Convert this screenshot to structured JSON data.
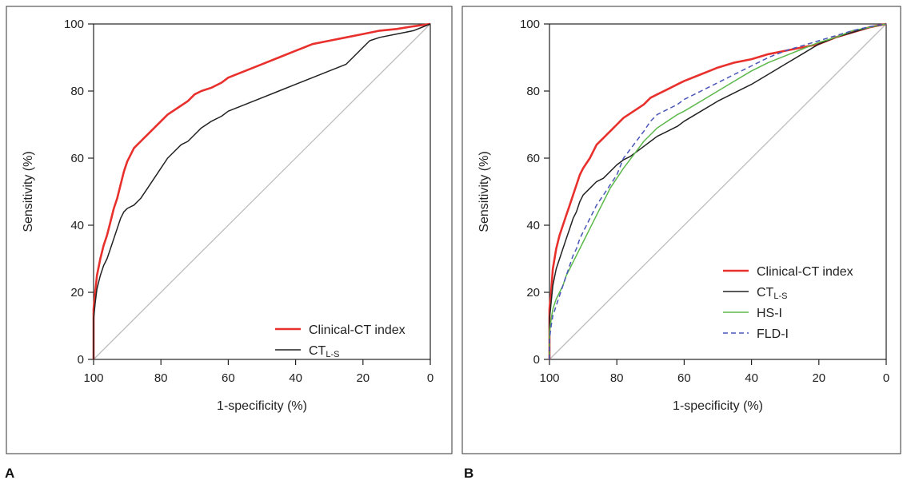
{
  "chart_data": [
    {
      "type": "line",
      "panel": "A",
      "xlabel": "1-specificity (%)",
      "ylabel": "Sensitivity (%)",
      "xlim": [
        100,
        0
      ],
      "ylim": [
        0,
        100
      ],
      "xticks": [
        100,
        80,
        60,
        40,
        20,
        0
      ],
      "yticks": [
        0,
        20,
        40,
        60,
        80,
        100
      ],
      "legend_position": "bottom-right",
      "reference_line": "diagonal",
      "series": [
        {
          "name": "Clinical-CT index",
          "color": "#e8302c",
          "style": "solid",
          "x": [
            100,
            100,
            99.5,
            99,
            98,
            97,
            96,
            95,
            94,
            93,
            92,
            91,
            90,
            88,
            86,
            84,
            82,
            80,
            78,
            75,
            72,
            70,
            68,
            65,
            62,
            60,
            55,
            50,
            45,
            40,
            35,
            30,
            25,
            20,
            15,
            10,
            5,
            0
          ],
          "y": [
            0,
            15,
            20,
            25,
            30,
            34,
            37,
            41,
            45,
            48,
            52,
            56,
            59,
            63,
            65,
            67,
            69,
            71,
            73,
            75,
            77,
            79,
            80,
            81,
            82.5,
            84,
            86,
            88,
            90,
            92,
            94,
            95,
            96,
            97,
            98,
            98.5,
            99.3,
            100
          ]
        },
        {
          "name": "CTL-S",
          "name_main": "CT",
          "name_sub": "L-S",
          "color": "#222222",
          "style": "solid",
          "x": [
            100,
            100,
            99.5,
            99,
            98,
            97,
            96,
            95,
            94,
            93,
            92,
            91,
            90,
            88,
            86,
            84,
            82,
            80,
            78,
            76,
            74,
            72,
            70,
            68,
            65,
            62,
            60,
            55,
            50,
            45,
            40,
            35,
            30,
            25,
            20,
            18,
            15,
            10,
            5,
            0
          ],
          "y": [
            0,
            12,
            17,
            21,
            25,
            28,
            30,
            33,
            36,
            39,
            42,
            44,
            45,
            46,
            48,
            51,
            54,
            57,
            60,
            62,
            64,
            65,
            67,
            69,
            71,
            72.5,
            74,
            76,
            78,
            80,
            82,
            84,
            86,
            88,
            93,
            95,
            96,
            97,
            98,
            100
          ]
        }
      ]
    },
    {
      "type": "line",
      "panel": "B",
      "xlabel": "1-specificity (%)",
      "ylabel": "Sensitivity (%)",
      "xlim": [
        100,
        0
      ],
      "ylim": [
        0,
        100
      ],
      "xticks": [
        100,
        80,
        60,
        40,
        20,
        0
      ],
      "yticks": [
        0,
        20,
        40,
        60,
        80,
        100
      ],
      "legend_position": "bottom-right",
      "reference_line": "diagonal",
      "series": [
        {
          "name": "Clinical-CT index",
          "color": "#e8302c",
          "style": "solid",
          "x": [
            100,
            100,
            99.5,
            99,
            98,
            97,
            96,
            95,
            94,
            93,
            92,
            91,
            90,
            88,
            86,
            84,
            82,
            80,
            78,
            75,
            72,
            70,
            68,
            65,
            62,
            60,
            55,
            50,
            45,
            40,
            35,
            30,
            25,
            20,
            15,
            10,
            5,
            0
          ],
          "y": [
            0,
            15,
            20,
            27,
            33,
            37,
            40,
            43,
            46,
            49,
            52,
            55,
            57,
            60,
            64,
            66,
            68,
            70,
            72,
            74,
            76,
            78,
            79,
            80.5,
            82,
            83,
            85,
            87,
            88.5,
            89.5,
            91,
            92,
            93,
            94,
            96,
            97.5,
            99,
            100
          ]
        },
        {
          "name": "CTL-S",
          "name_main": "CT",
          "name_sub": "L-S",
          "color": "#222222",
          "style": "solid",
          "x": [
            100,
            100,
            99.5,
            99,
            98,
            97,
            96,
            95,
            94,
            93,
            92,
            91,
            90,
            88,
            86,
            84,
            82,
            80,
            78,
            76,
            74,
            72,
            70,
            68,
            65,
            62,
            60,
            55,
            50,
            45,
            40,
            35,
            30,
            25,
            20,
            15,
            10,
            5,
            0
          ],
          "y": [
            0,
            12,
            17,
            22,
            27,
            30,
            33,
            36,
            39,
            42,
            44,
            47,
            49,
            51,
            53,
            54,
            56,
            58,
            59.5,
            60.5,
            62,
            63.5,
            65,
            66.5,
            68,
            69.5,
            71,
            74,
            77,
            79.5,
            82,
            85,
            88,
            91,
            94,
            96,
            97.5,
            99,
            100
          ]
        },
        {
          "name": "HS-I",
          "color": "#5cb84a",
          "style": "solid",
          "x": [
            100,
            100,
            99.5,
            99,
            98,
            97,
            96,
            95,
            94,
            93,
            92,
            91,
            90,
            88,
            86,
            84,
            82,
            80,
            78,
            75,
            72,
            70,
            68,
            65,
            62,
            60,
            55,
            50,
            45,
            40,
            35,
            30,
            25,
            20,
            15,
            10,
            5,
            0
          ],
          "y": [
            0,
            8,
            12,
            15,
            18,
            20,
            22,
            25,
            27,
            29,
            31,
            33,
            35,
            39,
            43,
            47,
            51,
            54,
            57,
            61,
            65,
            67,
            69,
            71,
            73,
            74,
            77,
            80,
            83,
            86,
            88.5,
            90.5,
            92.5,
            94.5,
            96,
            98,
            99,
            100
          ]
        },
        {
          "name": "FLD-I",
          "color": "#4a56b8",
          "style": "dashed",
          "x": [
            100,
            100,
            99.5,
            99,
            98,
            97,
            96,
            95,
            94,
            93,
            92,
            91,
            90,
            88,
            86,
            84,
            82,
            80,
            78,
            75,
            72,
            70,
            68,
            65,
            62,
            60,
            55,
            50,
            45,
            40,
            35,
            30,
            25,
            20,
            15,
            10,
            5,
            0
          ],
          "y": [
            0,
            6,
            10,
            13,
            16,
            19,
            22,
            25,
            28,
            31,
            33,
            36,
            38,
            42,
            46,
            49,
            52,
            55,
            60,
            64,
            68,
            71,
            73,
            74.5,
            76,
            77.5,
            80,
            82.5,
            85,
            87.5,
            90,
            92,
            93.5,
            95,
            96.5,
            98,
            99.2,
            100
          ]
        }
      ]
    }
  ]
}
